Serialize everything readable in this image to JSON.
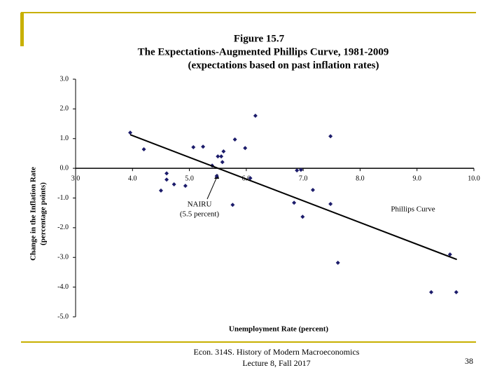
{
  "chart_data": {
    "type": "scatter",
    "title": "Figure 15.7",
    "subtitle": "The Expectations-Augmented Phillips Curve, 1981-2009",
    "subtitle2": "(expectations based on past inflation rates)",
    "ylabel": "Change in the Inflation Rate",
    "ylabel2": "(percentage points)",
    "xlabel": "Unemployment Rate (percent)",
    "xlim": [
      3,
      10
    ],
    "ylim": [
      -5,
      3
    ],
    "xticks": [
      {
        "value": 3,
        "label": "3.0"
      },
      {
        "value": 4,
        "label": "4.0"
      },
      {
        "value": 5,
        "label": "5.0"
      },
      {
        "value": 6,
        "label": "6.0"
      },
      {
        "value": 7,
        "label": "7.0"
      },
      {
        "value": 8,
        "label": "8.0"
      },
      {
        "value": 9,
        "label": "9.0"
      },
      {
        "value": 10,
        "label": "10.0"
      }
    ],
    "yticks": [
      {
        "value": 3,
        "label": "3.0"
      },
      {
        "value": 2,
        "label": "2.0"
      },
      {
        "value": 1,
        "label": "1.0"
      },
      {
        "value": 0,
        "label": "0.0"
      },
      {
        "value": -1,
        "label": "-1.0"
      },
      {
        "value": -2,
        "label": "-2.0"
      },
      {
        "value": -3,
        "label": "-3.0"
      },
      {
        "value": -4,
        "label": "-4.0"
      },
      {
        "value": -5,
        "label": "-5.0"
      }
    ],
    "color": "#1c1c6b",
    "x": [
      3.96,
      4.2,
      4.5,
      4.6,
      4.6,
      4.73,
      4.93,
      5.07,
      5.24,
      5.4,
      5.48,
      5.5,
      5.56,
      5.58,
      5.6,
      5.76,
      5.8,
      5.98,
      6.07,
      6.16,
      6.84,
      6.89,
      6.96,
      6.99,
      7.17,
      7.48,
      7.48,
      7.61,
      9.25,
      9.58,
      9.69
    ],
    "y": [
      1.2,
      0.64,
      -0.75,
      -0.17,
      -0.38,
      -0.54,
      -0.59,
      0.71,
      0.73,
      0.09,
      -0.26,
      0.4,
      0.4,
      0.21,
      0.57,
      -1.23,
      0.97,
      0.68,
      -0.33,
      1.77,
      -1.16,
      -0.07,
      -0.05,
      -1.63,
      -0.73,
      1.08,
      -1.2,
      -3.18,
      -4.17,
      -2.9,
      -4.17
    ],
    "trend_line": {
      "name": "Phillips Curve",
      "x": [
        3.96,
        9.7
      ],
      "y": [
        1.13,
        -3.07
      ]
    },
    "annotation": {
      "text": "NAIRU",
      "text2": "(5.5 percent)"
    }
  },
  "footer": {
    "line1": "Econ. 314S. History of Modern Macroeconomics",
    "line2": "Lecture 8, Fall 2017",
    "page": "38"
  }
}
